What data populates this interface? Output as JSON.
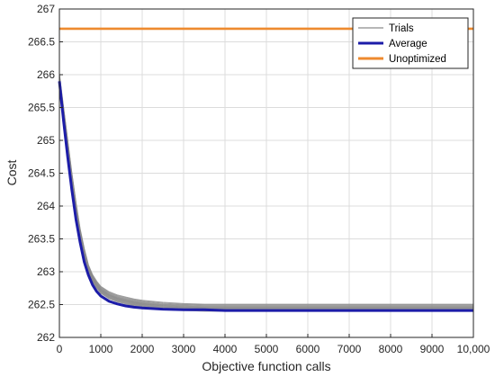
{
  "chart_data": {
    "type": "line",
    "xlabel": "Objective function calls",
    "ylabel": "Cost",
    "xlim": [
      0,
      10000
    ],
    "ylim": [
      262,
      267
    ],
    "x_ticks": [
      0,
      1000,
      2000,
      3000,
      4000,
      5000,
      6000,
      7000,
      8000,
      9000,
      10000
    ],
    "x_tick_labels": [
      "0",
      "1000",
      "2000",
      "3000",
      "4000",
      "5000",
      "6000",
      "7000",
      "8000",
      "9000",
      "10,000"
    ],
    "y_ticks": [
      262,
      262.5,
      263,
      263.5,
      264,
      264.5,
      265,
      265.5,
      266,
      266.5,
      267
    ],
    "y_tick_labels": [
      "262",
      "262.5",
      "263",
      "263.5",
      "264",
      "264.5",
      "265",
      "265.5",
      "266",
      "266.5",
      "267"
    ],
    "grid": true,
    "legend_position": "top-right",
    "series": [
      {
        "name": "Trials",
        "color": "#8c8c8c",
        "style": "thin-band",
        "x": [
          0,
          100,
          200,
          300,
          400,
          500,
          600,
          700,
          800,
          900,
          1000,
          1200,
          1400,
          1600,
          1800,
          2000,
          2500,
          3000,
          3500,
          4000,
          5000,
          6000,
          7000,
          8000,
          9000,
          10000
        ],
        "y": [
          265.95,
          265.45,
          264.95,
          264.45,
          264.0,
          263.6,
          263.3,
          263.05,
          262.9,
          262.8,
          262.72,
          262.64,
          262.59,
          262.56,
          262.53,
          262.51,
          262.48,
          262.46,
          262.45,
          262.45,
          262.45,
          262.45,
          262.45,
          262.45,
          262.45,
          262.45
        ]
      },
      {
        "name": "Average",
        "color": "#1c1ca8",
        "style": "thick",
        "x": [
          0,
          100,
          200,
          300,
          400,
          500,
          600,
          700,
          800,
          900,
          1000,
          1200,
          1400,
          1600,
          1800,
          2000,
          2500,
          3000,
          3500,
          4000,
          5000,
          6000,
          7000,
          8000,
          9000,
          10000
        ],
        "y": [
          265.9,
          265.3,
          264.75,
          264.25,
          263.8,
          263.45,
          263.15,
          262.95,
          262.8,
          262.7,
          262.63,
          262.55,
          262.51,
          262.48,
          262.46,
          262.45,
          262.43,
          262.42,
          262.42,
          262.41,
          262.41,
          262.41,
          262.41,
          262.41,
          262.41,
          262.41
        ]
      },
      {
        "name": "Unoptimized",
        "color": "#ee8a2e",
        "style": "thick",
        "x": [
          0,
          10000
        ],
        "y": [
          266.7,
          266.7
        ]
      }
    ]
  }
}
